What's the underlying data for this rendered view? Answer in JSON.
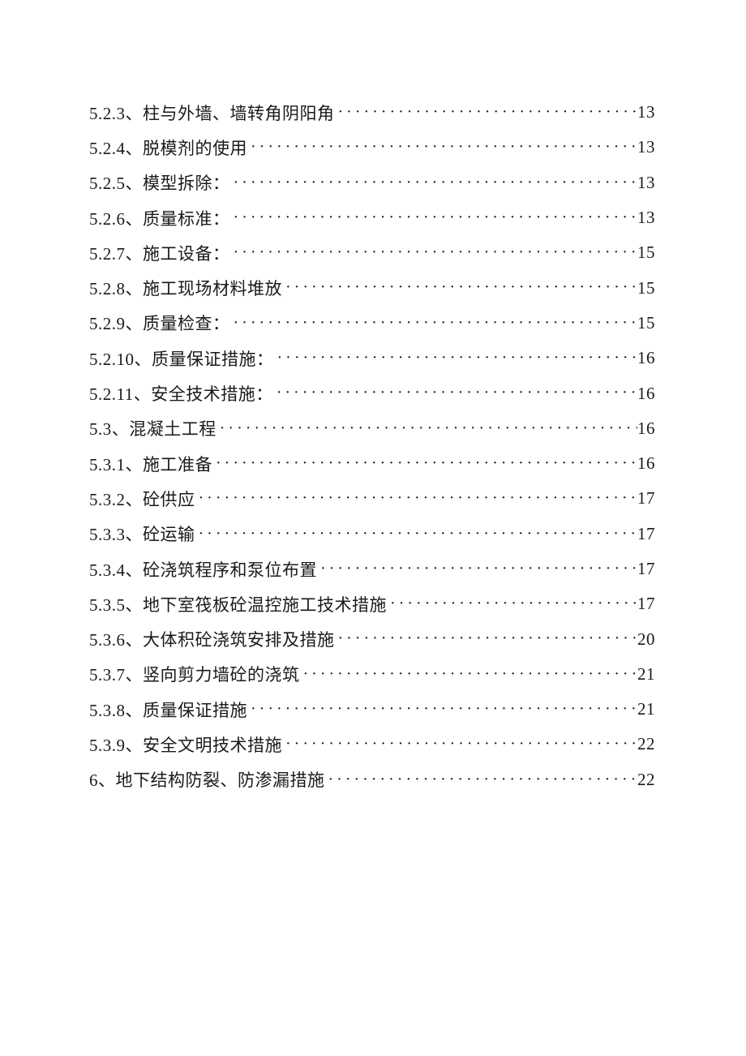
{
  "page": {
    "background_color": "#ffffff",
    "text_color": "#1a1a1a"
  },
  "toc": {
    "entries": [
      {
        "label": "5.2.3、柱与外墙、墙转角阴阳角",
        "page": "13"
      },
      {
        "label": "5.2.4、脱模剂的使用",
        "page": "13"
      },
      {
        "label": "5.2.5、模型拆除：",
        "page": "13"
      },
      {
        "label": "5.2.6、质量标准：",
        "page": "13"
      },
      {
        "label": "5.2.7、施工设备：",
        "page": "15"
      },
      {
        "label": "5.2.8、施工现场材料堆放",
        "page": "15"
      },
      {
        "label": "5.2.9、质量检查：",
        "page": "15"
      },
      {
        "label": "5.2.10、质量保证措施：",
        "page": "16"
      },
      {
        "label": "5.2.11、安全技术措施：",
        "page": "16"
      },
      {
        "label": "5.3、混凝土工程",
        "page": "16"
      },
      {
        "label": "5.3.1、施工准备",
        "page": "16"
      },
      {
        "label": "5.3.2、砼供应",
        "page": "17"
      },
      {
        "label": "5.3.3、砼运输",
        "page": "17"
      },
      {
        "label": "5.3.4、砼浇筑程序和泵位布置",
        "page": "17"
      },
      {
        "label": "5.3.5、地下室筏板砼温控施工技术措施",
        "page": "17"
      },
      {
        "label": "5.3.6、大体积砼浇筑安排及措施",
        "page": "20"
      },
      {
        "label": "5.3.7、竖向剪力墙砼的浇筑",
        "page": "21"
      },
      {
        "label": "5.3.8、质量保证措施",
        "page": "21"
      },
      {
        "label": "5.3.9、安全文明技术措施",
        "page": "22"
      },
      {
        "label": "6、地下结构防裂、防渗漏措施",
        "page": "22"
      }
    ]
  }
}
